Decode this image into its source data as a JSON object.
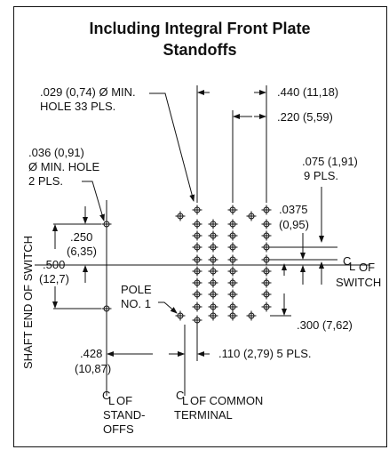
{
  "title": {
    "line1": "Including Integral Front Plate",
    "line2": "Standoffs"
  },
  "labels": {
    "hole_dia_line1": ".029 (0,74) Ø MIN.",
    "hole_dia_line2": "HOLE 33 PLS.",
    "dim_440": ".440 (11,18)",
    "dim_220": ".220 (5,59)",
    "standoff_hole_line1": ".036 (0,91)",
    "standoff_hole_line2": "Ø MIN. HOLE",
    "standoff_hole_line3": "2 PLS.",
    "dim_075_line1": ".075 (1,91)",
    "dim_075_line2": "9 PLS.",
    "dim_0375_line1": ".0375",
    "dim_0375_line2": "(0,95)",
    "dim_250_line1": ".250",
    "dim_250_line2": "(6,35)",
    "dim_500_line1": ".500",
    "dim_500_line2": "(12,7)",
    "cl_switch_line1": "C",
    "cl_switch_line1b": "L",
    "cl_switch_of": "OF",
    "cl_switch_line2": "SWITCH",
    "pole_line1": "POLE",
    "pole_line2": "NO. 1",
    "dim_300": ".300 (7,62)",
    "dim_428_line1": ".428",
    "dim_428_line2": "(10,87)",
    "dim_110": ".110 (2,79) 5 PLS.",
    "shaft_end": "SHAFT END OF SWITCH",
    "cl_standoffs_of": "OF",
    "cl_standoffs_line2": "STAND-",
    "cl_standoffs_line3": "OFFS",
    "cl_common_of": "OF COMMON",
    "cl_common_line2": "TERMINAL"
  }
}
